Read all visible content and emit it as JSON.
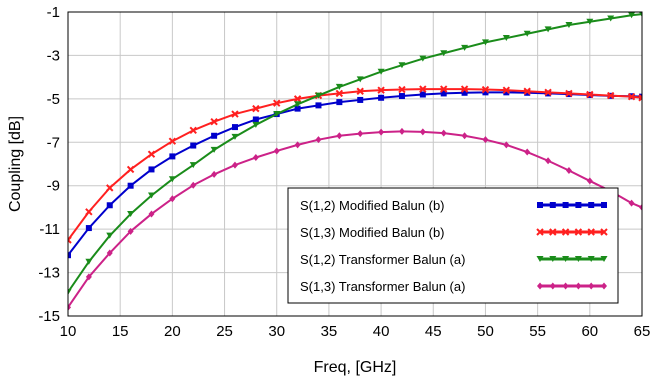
{
  "chart_data": {
    "type": "line",
    "xlabel": "Freq, [GHz]",
    "ylabel": "Coupling [dB]",
    "xlim": [
      10,
      65
    ],
    "ylim": [
      -15,
      -1
    ],
    "xticks": [
      10,
      15,
      20,
      25,
      30,
      35,
      40,
      45,
      50,
      55,
      60,
      65
    ],
    "yticks": [
      -15,
      -13,
      -11,
      -9,
      -7,
      -5,
      -3,
      -1
    ],
    "grid": true,
    "legend_position": "bottom-right",
    "x": [
      10,
      12,
      14,
      16,
      18,
      20,
      22,
      24,
      26,
      28,
      30,
      32,
      34,
      36,
      38,
      40,
      42,
      44,
      46,
      48,
      50,
      52,
      54,
      56,
      58,
      60,
      62,
      64,
      65
    ],
    "series": [
      {
        "name": "S(1,2) Modified Balun (b)",
        "color": "#0000cc",
        "marker": "square",
        "values": [
          -12.2,
          -10.95,
          -9.9,
          -9.0,
          -8.25,
          -7.65,
          -7.15,
          -6.7,
          -6.3,
          -5.95,
          -5.7,
          -5.45,
          -5.3,
          -5.15,
          -5.05,
          -4.95,
          -4.87,
          -4.8,
          -4.75,
          -4.72,
          -4.7,
          -4.7,
          -4.72,
          -4.75,
          -4.78,
          -4.82,
          -4.86,
          -4.88,
          -4.9
        ]
      },
      {
        "name": "S(1,3) Modified Balun (b)",
        "color": "#ff2020",
        "marker": "x",
        "values": [
          -11.5,
          -10.2,
          -9.1,
          -8.25,
          -7.55,
          -6.95,
          -6.45,
          -6.05,
          -5.7,
          -5.45,
          -5.2,
          -5.0,
          -4.85,
          -4.75,
          -4.65,
          -4.6,
          -4.57,
          -4.55,
          -4.55,
          -4.55,
          -4.57,
          -4.6,
          -4.65,
          -4.7,
          -4.75,
          -4.8,
          -4.85,
          -4.9,
          -4.95
        ]
      },
      {
        "name": "S(1,2) Transformer Balun (a)",
        "color": "#1a8c1a",
        "marker": "triangle-down",
        "values": [
          -13.9,
          -12.5,
          -11.3,
          -10.3,
          -9.45,
          -8.7,
          -8.05,
          -7.35,
          -6.75,
          -6.2,
          -5.7,
          -5.25,
          -4.85,
          -4.45,
          -4.1,
          -3.75,
          -3.45,
          -3.15,
          -2.9,
          -2.65,
          -2.4,
          -2.2,
          -2.0,
          -1.8,
          -1.6,
          -1.45,
          -1.3,
          -1.15,
          -1.1
        ]
      },
      {
        "name": "S(1,3) Transformer Balun (a)",
        "color": "#cc2288",
        "marker": "diamond",
        "values": [
          -14.6,
          -13.2,
          -12.1,
          -11.1,
          -10.3,
          -9.6,
          -8.98,
          -8.48,
          -8.05,
          -7.7,
          -7.4,
          -7.12,
          -6.88,
          -6.7,
          -6.6,
          -6.53,
          -6.5,
          -6.52,
          -6.58,
          -6.7,
          -6.88,
          -7.12,
          -7.45,
          -7.85,
          -8.3,
          -8.78,
          -9.25,
          -9.8,
          -10.0
        ]
      }
    ]
  }
}
